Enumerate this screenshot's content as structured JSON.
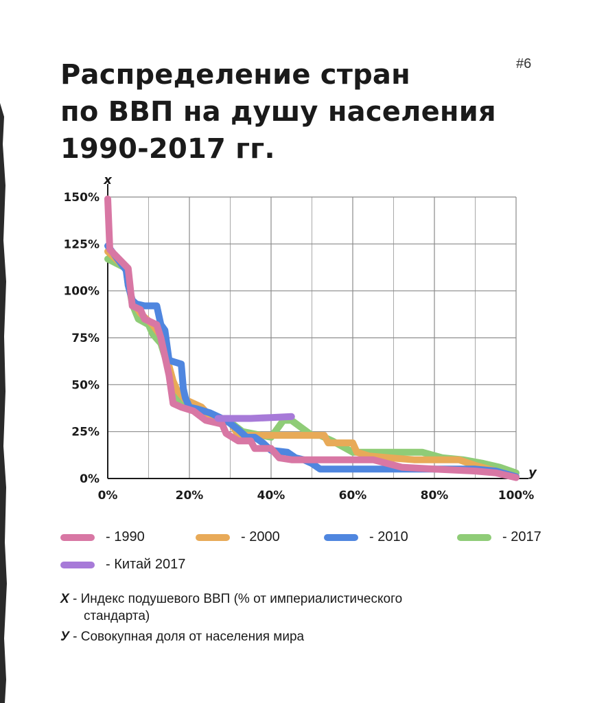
{
  "page_number": "#6",
  "title_lines": [
    "Распределение стран",
    "по ВВП на душу населения",
    "1990-2017 гг."
  ],
  "chart_data": {
    "type": "line",
    "x_axis_letter": "y",
    "y_axis_letter": "x",
    "x_ticks": [
      "0%",
      "20%",
      "40%",
      "60%",
      "80%",
      "100%"
    ],
    "y_ticks": [
      "0%",
      "25%",
      "50%",
      "75%",
      "100%",
      "125%",
      "150%"
    ],
    "xlim": [
      0,
      100
    ],
    "ylim": [
      0,
      150
    ],
    "grid": true,
    "series": [
      {
        "name": "- 2017",
        "color": "#8fcc77",
        "points": [
          [
            0,
            117
          ],
          [
            4.5,
            112
          ],
          [
            5,
            105
          ],
          [
            6,
            93
          ],
          [
            7.5,
            85
          ],
          [
            10,
            82
          ],
          [
            11,
            77
          ],
          [
            13,
            72
          ],
          [
            15,
            58
          ],
          [
            16,
            48
          ],
          [
            17,
            42
          ],
          [
            20,
            39
          ],
          [
            25,
            32
          ],
          [
            27,
            32
          ],
          [
            30,
            30
          ],
          [
            33,
            25
          ],
          [
            40,
            22
          ],
          [
            43,
            31
          ],
          [
            45,
            31
          ],
          [
            50,
            23
          ],
          [
            52,
            23
          ],
          [
            55,
            20
          ],
          [
            60,
            14
          ],
          [
            70,
            14
          ],
          [
            77,
            14
          ],
          [
            82,
            11
          ],
          [
            87,
            10
          ],
          [
            92,
            8
          ],
          [
            96,
            6
          ],
          [
            100,
            3
          ]
        ]
      },
      {
        "name": "- 2000",
        "color": "#e8aa58",
        "points": [
          [
            0,
            121
          ],
          [
            4.5,
            112
          ],
          [
            5,
            103
          ],
          [
            6,
            95
          ],
          [
            8,
            88
          ],
          [
            11,
            82
          ],
          [
            14,
            73
          ],
          [
            15,
            60
          ],
          [
            16,
            52
          ],
          [
            17,
            47
          ],
          [
            19,
            42
          ],
          [
            23,
            38
          ],
          [
            26,
            31
          ],
          [
            30,
            30
          ],
          [
            32,
            23
          ],
          [
            40,
            23
          ],
          [
            48,
            23
          ],
          [
            53,
            23
          ],
          [
            54,
            19
          ],
          [
            60,
            19
          ],
          [
            61,
            14
          ],
          [
            64,
            12
          ],
          [
            69,
            11
          ],
          [
            75,
            10
          ],
          [
            86,
            10
          ],
          [
            90,
            7
          ],
          [
            95,
            4
          ],
          [
            100,
            1
          ]
        ]
      },
      {
        "name": "- 2010",
        "color": "#4f86df",
        "points": [
          [
            0,
            124
          ],
          [
            4.5,
            111
          ],
          [
            5,
            103
          ],
          [
            6,
            95
          ],
          [
            7,
            93
          ],
          [
            9,
            92
          ],
          [
            12,
            92
          ],
          [
            13,
            82
          ],
          [
            14,
            79
          ],
          [
            15,
            63
          ],
          [
            18,
            61
          ],
          [
            18.5,
            48
          ],
          [
            19,
            43
          ],
          [
            20,
            38
          ],
          [
            22,
            37
          ],
          [
            25,
            35
          ],
          [
            29,
            31
          ],
          [
            32,
            26
          ],
          [
            34,
            22
          ],
          [
            36,
            22
          ],
          [
            38,
            19
          ],
          [
            40,
            15
          ],
          [
            44,
            14
          ],
          [
            46,
            11
          ],
          [
            48,
            10
          ],
          [
            50,
            8
          ],
          [
            52,
            5
          ],
          [
            60,
            5
          ],
          [
            70,
            5
          ],
          [
            90,
            5
          ],
          [
            95,
            4
          ],
          [
            100,
            1
          ]
        ]
      },
      {
        "name": "- 1990",
        "color": "#d877a4",
        "points": [
          [
            0,
            149
          ],
          [
            0.5,
            122
          ],
          [
            5,
            112
          ],
          [
            6,
            92
          ],
          [
            8,
            90
          ],
          [
            9,
            85
          ],
          [
            12,
            82
          ],
          [
            13,
            75
          ],
          [
            15,
            55
          ],
          [
            16,
            40
          ],
          [
            18,
            38
          ],
          [
            21,
            36
          ],
          [
            24,
            31
          ],
          [
            28,
            29
          ],
          [
            29,
            24
          ],
          [
            32,
            20
          ],
          [
            35,
            20
          ],
          [
            36,
            16
          ],
          [
            40,
            16
          ],
          [
            42,
            11
          ],
          [
            45,
            10
          ],
          [
            50,
            10
          ],
          [
            55,
            10
          ],
          [
            65,
            10
          ],
          [
            72,
            6
          ],
          [
            80,
            5
          ],
          [
            90,
            4
          ],
          [
            95,
            3
          ],
          [
            100,
            0.5
          ]
        ]
      },
      {
        "name": "- Китай 2017",
        "color": "#a77ad8",
        "points": [
          [
            27,
            32
          ],
          [
            35,
            32
          ],
          [
            40,
            32.5
          ],
          [
            45,
            33
          ]
        ]
      }
    ]
  },
  "notes": [
    {
      "key": "X",
      "text": " - Индекс подушевого ВВП (% от империалистического",
      "text2": "стандарта)"
    },
    {
      "key": "У",
      "text": " - Совокупная доля от населения мира",
      "text2": ""
    }
  ]
}
